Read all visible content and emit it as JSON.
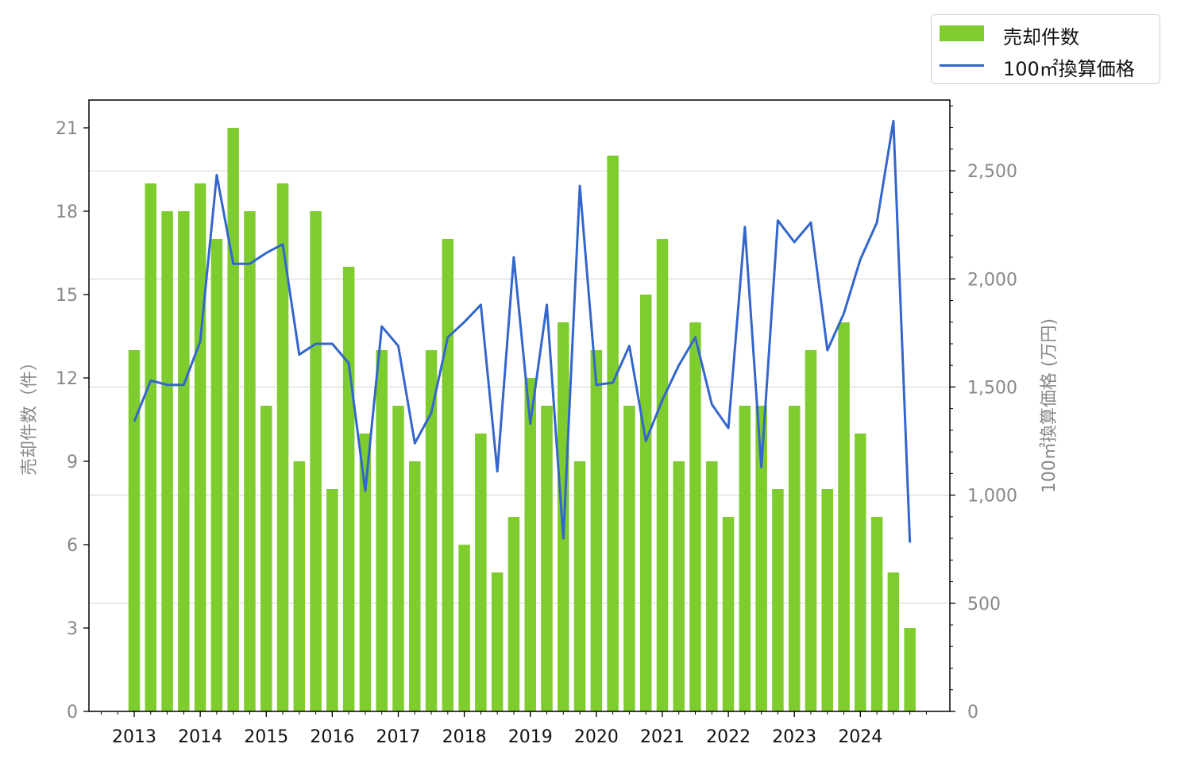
{
  "chart_data": {
    "type": "bar+line",
    "x": [
      "2013-Q1",
      "2013-Q2",
      "2013-Q3",
      "2013-Q4",
      "2014-Q1",
      "2014-Q2",
      "2014-Q3",
      "2014-Q4",
      "2015-Q1",
      "2015-Q2",
      "2015-Q3",
      "2015-Q4",
      "2016-Q1",
      "2016-Q2",
      "2016-Q3",
      "2016-Q4",
      "2017-Q1",
      "2017-Q2",
      "2017-Q3",
      "2017-Q4",
      "2018-Q1",
      "2018-Q2",
      "2018-Q3",
      "2018-Q4",
      "2019-Q1",
      "2019-Q2",
      "2019-Q3",
      "2019-Q4",
      "2020-Q1",
      "2020-Q2",
      "2020-Q3",
      "2020-Q4",
      "2021-Q1",
      "2021-Q2",
      "2021-Q3",
      "2021-Q4",
      "2022-Q1",
      "2022-Q2",
      "2022-Q3",
      "2022-Q4",
      "2023-Q1",
      "2023-Q2",
      "2023-Q3",
      "2023-Q4",
      "2024-Q1",
      "2024-Q2",
      "2024-Q3",
      "2024-Q4"
    ],
    "x_tick_labels": [
      "2013",
      "2014",
      "2015",
      "2016",
      "2017",
      "2018",
      "2019",
      "2020",
      "2021",
      "2022",
      "2023",
      "2024"
    ],
    "series": [
      {
        "name": "売却件数",
        "kind": "bar",
        "axis": "left",
        "color": "#7fcc2e",
        "values": [
          13,
          19,
          18,
          18,
          19,
          17,
          21,
          18,
          11,
          19,
          9,
          18,
          8,
          16,
          10,
          13,
          11,
          9,
          13,
          17,
          6,
          10,
          5,
          7,
          12,
          11,
          14,
          9,
          13,
          20,
          11,
          15,
          17,
          9,
          14,
          9,
          7,
          11,
          11,
          8,
          11,
          13,
          8,
          14,
          10,
          7,
          5,
          3
        ]
      },
      {
        "name": "100㎡換算価格",
        "kind": "line",
        "axis": "right",
        "color": "#3366cc",
        "values": [
          1340,
          1530,
          1510,
          1510,
          1710,
          2480,
          2070,
          2070,
          2120,
          2160,
          1650,
          1700,
          1700,
          1610,
          1020,
          1780,
          1690,
          1240,
          1380,
          1730,
          1800,
          1880,
          1110,
          2100,
          1330,
          1880,
          800,
          2430,
          1510,
          1520,
          1690,
          1250,
          1440,
          1600,
          1730,
          1420,
          1310,
          2240,
          1130,
          2270,
          2170,
          2260,
          1670,
          1840,
          2090,
          2260,
          2730,
          780
        ]
      }
    ],
    "y_left": {
      "label": "売却件数（件）",
      "lim": [
        0,
        22
      ],
      "ticks": [
        0,
        3,
        6,
        9,
        12,
        15,
        18,
        21
      ],
      "tick_labels": [
        "0",
        "3",
        "6",
        "9",
        "12",
        "15",
        "18",
        "21"
      ]
    },
    "y_right": {
      "label": "100㎡換算価格 (万円)",
      "lim": [
        0,
        2827
      ],
      "ticks": [
        0,
        500,
        1000,
        1500,
        2000,
        2500
      ],
      "tick_labels": [
        "0",
        "500",
        "1,000",
        "1,500",
        "2,000",
        "2,500"
      ]
    },
    "grid": "horizontal (right axis)",
    "legend": {
      "placement": "top-right, outside plot",
      "entries": [
        "売却件数",
        "100㎡換算価格"
      ]
    }
  }
}
